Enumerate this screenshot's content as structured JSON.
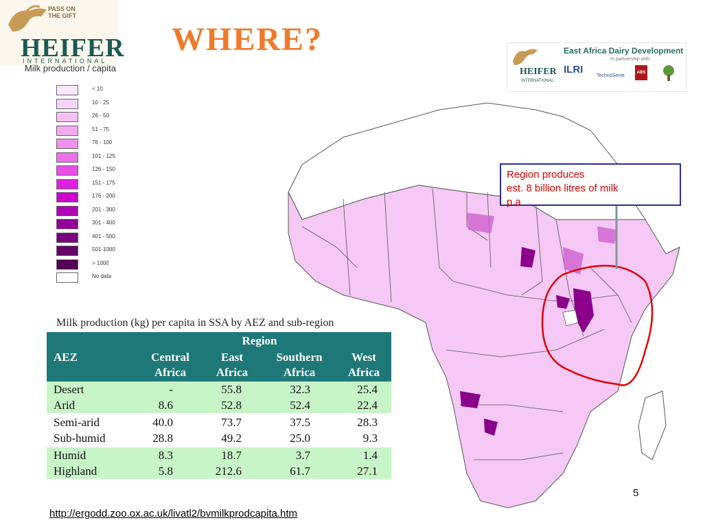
{
  "slide": {
    "title": "WHERE?",
    "page_number": "5",
    "source_url": "http://ergodd.zoo.ox.ac.uk/livatl2/bvmilkprodcapita.htm"
  },
  "logos": {
    "left": {
      "pass_on": "PASS ON",
      "the_gift": "THE GIFT",
      "name": "HEIFER",
      "sub": "INTERNATIONAL"
    },
    "right": {
      "title": "East Africa Dairy Development",
      "partner": "In partnership with",
      "heifer": "HEIFER",
      "heifer_sub": "INTERNATIONAL",
      "ilri": "ILRI",
      "technoserve": "TechnoServe",
      "abs": "ABS"
    }
  },
  "legend": {
    "title": "Milk production / capita",
    "items": [
      {
        "label": "< 10",
        "color": "#fce8fc"
      },
      {
        "label": "10 - 25",
        "color": "#f9d4f9"
      },
      {
        "label": "26 - 50",
        "color": "#f5c0f5"
      },
      {
        "label": "51 - 75",
        "color": "#f2aaf2"
      },
      {
        "label": "76 - 100",
        "color": "#ef90ef"
      },
      {
        "label": "101 - 125",
        "color": "#ec70ec"
      },
      {
        "label": "126 - 150",
        "color": "#e84ee8"
      },
      {
        "label": "151 - 175",
        "color": "#e020e0"
      },
      {
        "label": "176 - 200",
        "color": "#d000d0"
      },
      {
        "label": "201 - 300",
        "color": "#b000b8"
      },
      {
        "label": "301 - 400",
        "color": "#960099"
      },
      {
        "label": "401 - 500",
        "color": "#7a007f"
      },
      {
        "label": "501-1000",
        "color": "#650069"
      },
      {
        "label": "> 1000",
        "color": "#520055"
      },
      {
        "label": "No data",
        "color": "#ffffff"
      }
    ]
  },
  "table": {
    "title": "Milk production (kg) per capita in SSA by AEZ and sub-region",
    "header_group": "Region",
    "row_header": "AEZ",
    "columns": [
      [
        "Central",
        "Africa"
      ],
      [
        "East",
        "Africa"
      ],
      [
        "Southern",
        "Africa"
      ],
      [
        "West",
        "Africa"
      ]
    ],
    "rows": [
      {
        "aez": "Desert",
        "values": [
          "-",
          "55.8",
          "32.3",
          "25.4"
        ]
      },
      {
        "aez": "Arid",
        "values": [
          "8.6",
          "52.8",
          "52.4",
          "22.4"
        ]
      },
      {
        "aez": "Semi-arid",
        "values": [
          "40.0",
          "73.7",
          "37.5",
          "28.3"
        ]
      },
      {
        "aez": "Sub-humid",
        "values": [
          "28.8",
          "49.2",
          "25.0",
          "9.3"
        ]
      },
      {
        "aez": "Humid",
        "values": [
          "8.3",
          "18.7",
          "3.7",
          "1.4"
        ]
      },
      {
        "aez": "Highland",
        "values": [
          "5.8",
          "212.6",
          "61.7",
          "27.1"
        ]
      }
    ]
  },
  "callout": {
    "line1": "Region produces",
    "line2": " est. 8 billion litres of milk",
    "line3": "p.a"
  },
  "colors": {
    "title": "#f07a2a",
    "table_header": "#1f7878",
    "band": "#c8f5c8",
    "callout_text": "#d40000",
    "highlight_ring": "#e00000",
    "map_fill": "#f5c8f5",
    "map_intense": "#8a008a"
  }
}
